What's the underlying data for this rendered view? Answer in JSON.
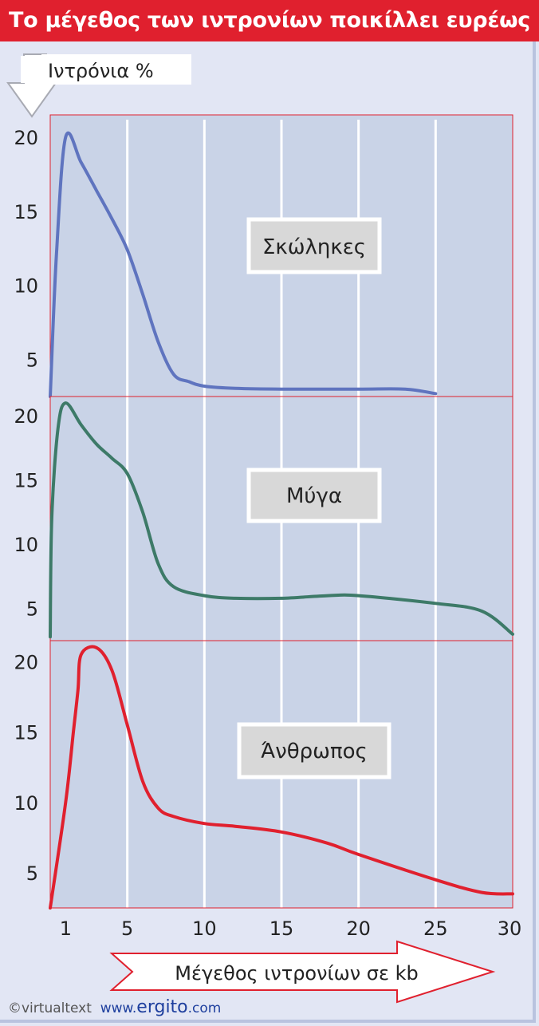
{
  "title": "Το μέγεθος των ιντρονίων ποικίλλει ευρέως",
  "footer": {
    "copyright": "©virtualtext",
    "www": "www.",
    "brand": "ergito",
    "domain": ".com"
  },
  "colors": {
    "title_bg": "#e0202e",
    "plot_bg": "#c9d3e7",
    "page_bg": "#e2e6f4",
    "grid": "#ffffff",
    "border": "#e0202e"
  },
  "chart_data": {
    "type": "line",
    "y_axis_title": "Ιντρόνια %",
    "x_axis_title": "Μέγεθος ιντρονίων σε kb",
    "x_ticks": [
      1,
      5,
      10,
      15,
      20,
      25,
      30
    ],
    "y_ticks": [
      5,
      10,
      15,
      20
    ],
    "xlim": [
      0,
      30
    ],
    "ylim": [
      2.5,
      21.5
    ],
    "grid": true,
    "series": [
      {
        "name": "Σκώληκες",
        "color": "#5f74bf",
        "points": [
          [
            0,
            2.5
          ],
          [
            0.4,
            12
          ],
          [
            1,
            20
          ],
          [
            2,
            18.3
          ],
          [
            3,
            16.4
          ],
          [
            4,
            14.5
          ],
          [
            5,
            12.4
          ],
          [
            6,
            9.4
          ],
          [
            7,
            6.2
          ],
          [
            8,
            4.0
          ],
          [
            9,
            3.5
          ],
          [
            10,
            3.2
          ],
          [
            12,
            3.05
          ],
          [
            15,
            3.0
          ],
          [
            20,
            3.0
          ],
          [
            23,
            3.0
          ],
          [
            25,
            2.7
          ]
        ]
      },
      {
        "name": "Μύγα",
        "color": "#3d7a68",
        "points": [
          [
            0,
            2.8
          ],
          [
            0.1,
            12
          ],
          [
            0.5,
            19
          ],
          [
            1,
            21
          ],
          [
            2,
            19.3
          ],
          [
            3,
            17.8
          ],
          [
            4,
            16.7
          ],
          [
            5,
            15.5
          ],
          [
            6,
            12.5
          ],
          [
            7,
            8.5
          ],
          [
            8,
            6.7
          ],
          [
            10,
            6.0
          ],
          [
            12,
            5.8
          ],
          [
            15,
            5.8
          ],
          [
            18,
            6.0
          ],
          [
            20,
            6.0
          ],
          [
            25,
            5.4
          ],
          [
            28,
            4.8
          ],
          [
            30,
            3.0
          ]
        ]
      },
      {
        "name": "Άνθρωπος",
        "color": "#e0202e",
        "points": [
          [
            0,
            2.5
          ],
          [
            1,
            10
          ],
          [
            1.5,
            15
          ],
          [
            1.8,
            18
          ],
          [
            2,
            20.5
          ],
          [
            3,
            21
          ],
          [
            4,
            19.4
          ],
          [
            5,
            15.5
          ],
          [
            6,
            11.5
          ],
          [
            7,
            9.6
          ],
          [
            8,
            9.0
          ],
          [
            10,
            8.5
          ],
          [
            12,
            8.3
          ],
          [
            15,
            7.9
          ],
          [
            18,
            7.1
          ],
          [
            20,
            6.3
          ],
          [
            25,
            4.5
          ],
          [
            28,
            3.6
          ],
          [
            30,
            3.5
          ]
        ]
      }
    ]
  }
}
